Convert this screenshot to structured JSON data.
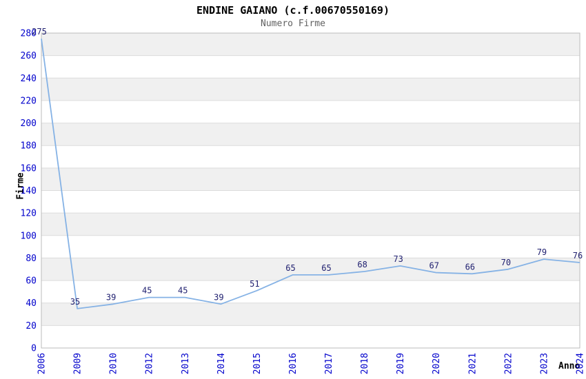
{
  "header": {
    "title": "ENDINE GAIANO (c.f.00670550169)",
    "subtitle": "Numero Firme"
  },
  "chart_data": {
    "type": "line",
    "title": "ENDINE GAIANO (c.f.00670550169)",
    "subtitle": "Numero Firme",
    "xlabel": "Anno",
    "ylabel": "Firme",
    "categories": [
      "2006",
      "2009",
      "2010",
      "2012",
      "2013",
      "2014",
      "2015",
      "2016",
      "2017",
      "2018",
      "2019",
      "2020",
      "2021",
      "2022",
      "2023",
      "2024"
    ],
    "values": [
      275,
      35,
      39,
      45,
      45,
      39,
      51,
      65,
      65,
      68,
      73,
      67,
      66,
      70,
      79,
      76
    ],
    "ylim": [
      0,
      280
    ],
    "y_tick_step": 20,
    "grid": true,
    "band_fill": true,
    "legend_position": "none",
    "colors": {
      "line": "#85b2e5",
      "tick_label": "#0000cc",
      "value_label": "#202070",
      "band_gray": "#f0f0f0",
      "band_white": "#ffffff",
      "grid_line": "#dcdcdc",
      "plot_border": "#bbbbbb",
      "title": "#000000",
      "subtitle": "#606060",
      "axis_title": "#000000"
    }
  }
}
